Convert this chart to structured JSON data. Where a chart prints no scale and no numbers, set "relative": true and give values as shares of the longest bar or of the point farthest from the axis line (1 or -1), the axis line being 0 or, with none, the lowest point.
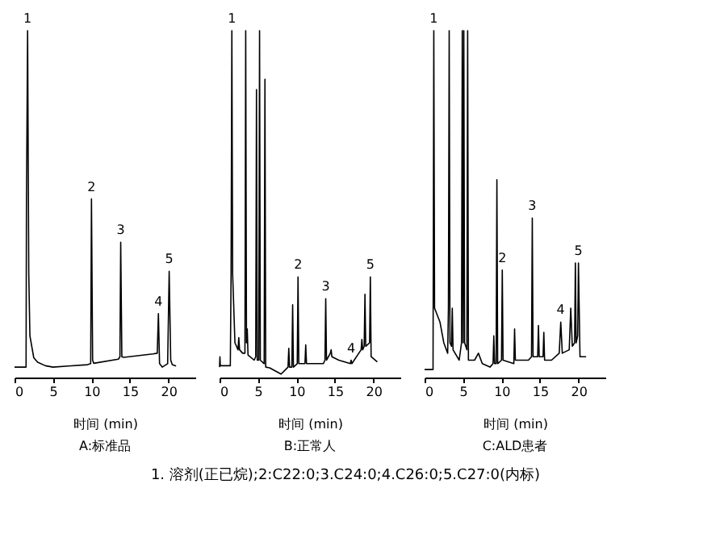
{
  "chart_data": [
    {
      "type": "line",
      "title": "A:标准品",
      "xlabel": "时间 (min)",
      "relative": true,
      "xlim": [
        0,
        23.5
      ],
      "xticks": [
        0,
        5,
        10,
        15,
        20
      ],
      "x": [
        0,
        1.5,
        1.55,
        1.7,
        1.85,
        2.0,
        2.5,
        3,
        4,
        5,
        7,
        9.5,
        9.9,
        10.0,
        10.15,
        10.3,
        13.5,
        13.7,
        13.8,
        13.95,
        14.2,
        18,
        18.55,
        18.7,
        18.85,
        19.2,
        19.9,
        20.1,
        20.3,
        20.5,
        21
      ],
      "series": [
        {
          "color": "#000000",
          "values": [
            0.03,
            0.03,
            0.5,
            1.0,
            0.3,
            0.12,
            0.057,
            0.044,
            0.034,
            0.03,
            0.033,
            0.037,
            0.04,
            0.515,
            0.05,
            0.041,
            0.053,
            0.06,
            0.39,
            0.06,
            0.058,
            0.068,
            0.07,
            0.184,
            0.04,
            0.03,
            0.04,
            0.306,
            0.05,
            0.037,
            0.033
          ]
        }
      ],
      "annotations": [
        {
          "text": "1",
          "x": 1.7,
          "y": 1.0
        },
        {
          "text": "2",
          "x": 10.0,
          "y": 0.515
        },
        {
          "text": "3",
          "x": 13.8,
          "y": 0.39
        },
        {
          "text": "4",
          "x": 18.7,
          "y": 0.184
        },
        {
          "text": "5",
          "x": 20.1,
          "y": 0.306
        }
      ]
    },
    {
      "type": "line",
      "title": "B:正常人",
      "xlabel": "时间 (min)",
      "relative": true,
      "xlim": [
        0,
        23.5
      ],
      "xticks": [
        0,
        5,
        10,
        15,
        20
      ],
      "x": [
        0,
        0.05,
        0.1,
        1.4,
        1.5,
        1.6,
        1.7,
        2.0,
        2.4,
        2.5,
        2.6,
        3.0,
        3.3,
        3.4,
        3.5,
        3.6,
        3.7,
        4.5,
        4.7,
        4.8,
        4.9,
        5.1,
        5.2,
        5.3,
        5.8,
        5.9,
        6.0,
        6.5,
        8,
        8.9,
        9.0,
        9.1,
        9.4,
        9.5,
        9.6,
        10.1,
        10.2,
        10.3,
        11.1,
        11.2,
        11.3,
        12,
        13.5,
        13.7,
        13.8,
        13.9,
        14.4,
        14.5,
        14.6,
        15.5,
        17.0,
        17.1,
        17.2,
        18.4,
        18.5,
        18.6,
        18.8,
        18.9,
        19.0,
        19.5,
        19.6,
        19.7,
        20.5
      ],
      "series": [
        {
          "color": "#000000",
          "values": [
            0.03,
            0.06,
            0.034,
            0.034,
            0.3,
            1.0,
            0.3,
            0.1,
            0.08,
            0.115,
            0.08,
            0.07,
            0.07,
            1.0,
            0.1,
            0.14,
            0.065,
            0.05,
            0.06,
            0.83,
            0.05,
            0.05,
            1.0,
            0.05,
            0.04,
            0.86,
            0.03,
            0.028,
            0.01,
            0.03,
            0.084,
            0.03,
            0.03,
            0.21,
            0.03,
            0.04,
            0.29,
            0.04,
            0.04,
            0.094,
            0.04,
            0.04,
            0.04,
            0.05,
            0.227,
            0.05,
            0.07,
            0.08,
            0.06,
            0.05,
            0.04,
            0.05,
            0.04,
            0.08,
            0.11,
            0.08,
            0.09,
            0.24,
            0.09,
            0.1,
            0.29,
            0.06,
            0.045
          ]
        }
      ],
      "annotations": [
        {
          "text": "1",
          "x": 1.6,
          "y": 1.0
        },
        {
          "text": "2",
          "x": 10.2,
          "y": 0.29
        },
        {
          "text": "3",
          "x": 13.8,
          "y": 0.227
        },
        {
          "text": "4",
          "x": 17.1,
          "y": 0.05
        },
        {
          "text": "5",
          "x": 19.6,
          "y": 0.29
        },
        "1. 溶剂(正已烷);2:C22:0;3.C24:0;4.C26:0;5.C27:0(内标)"
      ]
    },
    {
      "type": "line",
      "title": "C:ALD患者",
      "xlabel": "时间 (min)",
      "relative": true,
      "xlim": [
        0,
        23.5
      ],
      "xticks": [
        0,
        5,
        10,
        15,
        20
      ],
      "x": [
        0,
        1.1,
        1.15,
        1.2,
        1.3,
        2.0,
        2.5,
        3.0,
        3.1,
        3.2,
        3.3,
        3.5,
        3.6,
        3.7,
        4.5,
        4.8,
        4.9,
        5.0,
        5.1,
        5.2,
        5.5,
        5.6,
        5.7,
        6.5,
        7.0,
        7.5,
        8.5,
        8.9,
        9.0,
        9.1,
        9.3,
        9.4,
        9.5,
        10.0,
        10.1,
        10.2,
        11.6,
        11.7,
        11.8,
        13.5,
        13.9,
        14.0,
        14.1,
        14.7,
        14.8,
        14.9,
        15.4,
        15.5,
        15.6,
        16.5,
        17.5,
        17.7,
        17.9,
        18.8,
        19.0,
        19.2,
        19.5,
        19.6,
        19.7,
        19.9,
        20.0,
        20.2,
        21
      ],
      "series": [
        {
          "color": "#000000",
          "values": [
            0.023,
            0.023,
            0.5,
            1.0,
            0.2,
            0.16,
            0.1,
            0.07,
            0.2,
            1.0,
            0.1,
            0.09,
            0.2,
            0.08,
            0.05,
            0.1,
            1.0,
            0.1,
            1.0,
            0.1,
            0.08,
            1.0,
            0.05,
            0.05,
            0.07,
            0.04,
            0.03,
            0.04,
            0.12,
            0.04,
            0.04,
            0.57,
            0.04,
            0.05,
            0.31,
            0.05,
            0.04,
            0.14,
            0.05,
            0.05,
            0.06,
            0.46,
            0.06,
            0.06,
            0.15,
            0.06,
            0.06,
            0.13,
            0.05,
            0.05,
            0.07,
            0.16,
            0.07,
            0.08,
            0.2,
            0.09,
            0.1,
            0.33,
            0.1,
            0.12,
            0.33,
            0.06,
            0.06
          ]
        }
      ],
      "annotations": [
        {
          "text": "1",
          "x": 1.2,
          "y": 1.0
        },
        {
          "text": "2",
          "x": 10.1,
          "y": 0.31
        },
        {
          "text": "3",
          "x": 14.0,
          "y": 0.46
        },
        {
          "text": "4",
          "x": 17.7,
          "y": 0.16
        },
        {
          "text": "5",
          "x": 20.0,
          "y": 0.33
        }
      ]
    }
  ]
}
